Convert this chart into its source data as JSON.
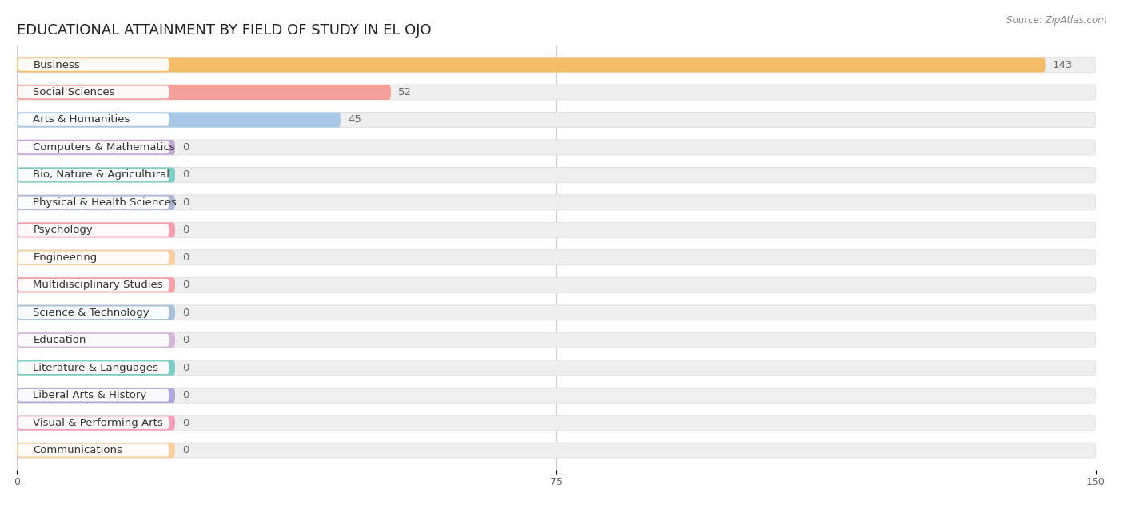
{
  "title": "EDUCATIONAL ATTAINMENT BY FIELD OF STUDY IN EL OJO",
  "source": "Source: ZipAtlas.com",
  "categories": [
    "Business",
    "Social Sciences",
    "Arts & Humanities",
    "Computers & Mathematics",
    "Bio, Nature & Agricultural",
    "Physical & Health Sciences",
    "Psychology",
    "Engineering",
    "Multidisciplinary Studies",
    "Science & Technology",
    "Education",
    "Literature & Languages",
    "Liberal Arts & History",
    "Visual & Performing Arts",
    "Communications"
  ],
  "values": [
    143,
    52,
    45,
    0,
    0,
    0,
    0,
    0,
    0,
    0,
    0,
    0,
    0,
    0,
    0
  ],
  "bar_colors": [
    "#F5BC6A",
    "#F4A09A",
    "#A8C8E8",
    "#C4A8D4",
    "#7ECEC4",
    "#B0B8D8",
    "#F4A0B0",
    "#F8CFA0",
    "#F4A0A8",
    "#A8C0D8",
    "#D4B8D8",
    "#7ECEC4",
    "#B0A8D8",
    "#F4A0B8",
    "#F8CFA0"
  ],
  "xlim": [
    0,
    150
  ],
  "xticks": [
    0,
    75,
    150
  ],
  "background_color": "#ffffff",
  "bar_bg_color": "#efefef",
  "title_fontsize": 13,
  "label_fontsize": 9.5,
  "bar_height": 0.55,
  "bar_gap": 1.0
}
